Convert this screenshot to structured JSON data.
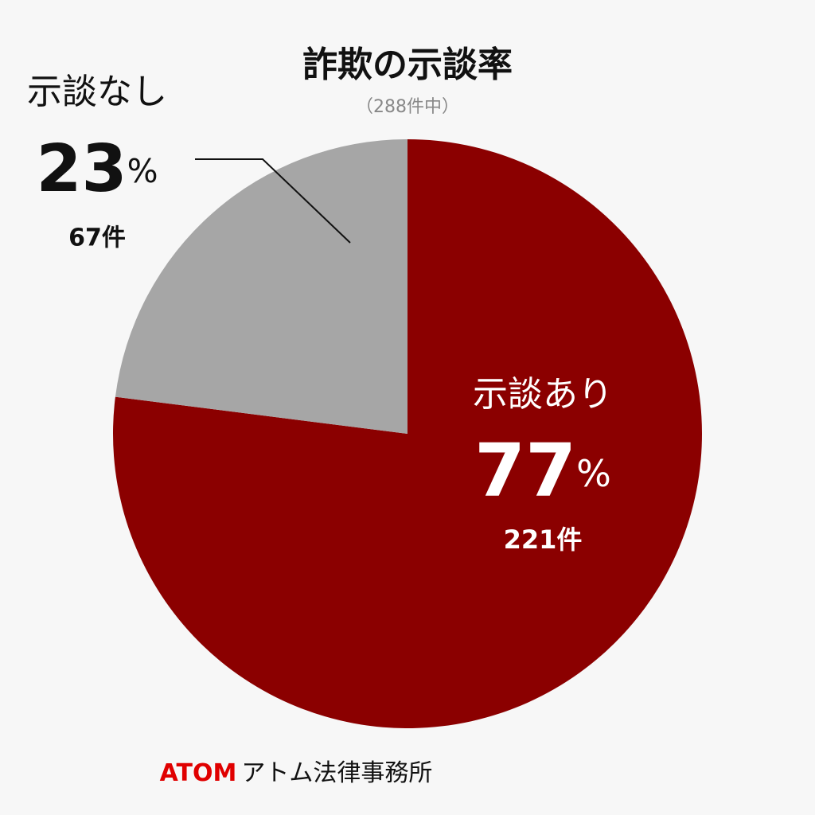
{
  "chart_data": {
    "type": "pie",
    "title": "詐欺の示談率",
    "subtitle": "（288件中）",
    "categories": [
      "示談あり",
      "示談なし"
    ],
    "values": [
      77,
      23
    ],
    "value_labels": [
      "77%",
      "23%"
    ],
    "count_labels": [
      "221件",
      "67件"
    ],
    "colors": [
      "#8b0000",
      "#a6a6a6"
    ],
    "footer": {
      "brand": "ATOM",
      "name": "アトム法律事務所"
    }
  }
}
